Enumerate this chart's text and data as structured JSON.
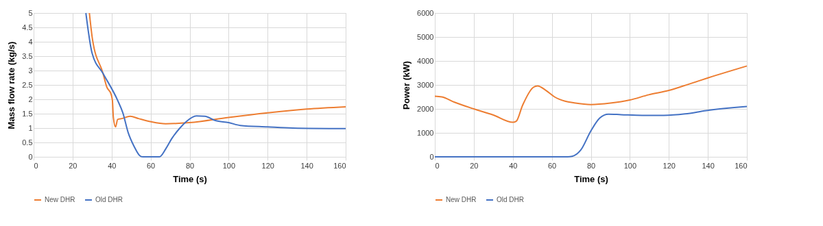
{
  "chart_data": [
    {
      "type": "line",
      "xlabel": "Time (s)",
      "ylabel": "Mass flow rate (kg/s)",
      "xlim": [
        0,
        160
      ],
      "xticks": [
        0,
        20,
        40,
        60,
        80,
        100,
        120,
        140,
        160
      ],
      "ylim": [
        0,
        5
      ],
      "yticks": [
        0,
        0.5,
        1,
        1.5,
        2,
        2.5,
        3,
        3.5,
        4,
        4.5,
        5
      ],
      "grid": true,
      "legend": "bottom",
      "marker": "none",
      "line_style": "solid",
      "series": [
        {
          "name": "New DHR",
          "color": "#ed7d31",
          "x": [
            28.6,
            30.2,
            35.6,
            37.5,
            39.7,
            40.4,
            40.9,
            42,
            43.1,
            45.2,
            49.5,
            53.8,
            60.2,
            67.7,
            80,
            100,
            120,
            140,
            160
          ],
          "values": [
            5,
            4.08,
            2.9,
            2.43,
            2.18,
            1.96,
            1.37,
            1.04,
            1.3,
            1.33,
            1.41,
            1.33,
            1.22,
            1.15,
            1.19,
            1.37,
            1.53,
            1.66,
            1.74
          ]
        },
        {
          "name": "Old DHR",
          "color": "#4472c4",
          "x": [
            26.8,
            30,
            35.6,
            43.1,
            45.8,
            48.4,
            51.7,
            54.3,
            56,
            64.5,
            67.7,
            70.9,
            75,
            78.2,
            83.5,
            87.8,
            93.2,
            100,
            106,
            120,
            132.9,
            160
          ],
          "values": [
            5,
            3.6,
            2.9,
            1.96,
            1.52,
            0.86,
            0.34,
            0.05,
            0,
            0,
            0.27,
            0.64,
            1.0,
            1.22,
            1.42,
            1.41,
            1.26,
            1.19,
            1.09,
            1.04,
            1.0,
            0.98
          ]
        }
      ]
    },
    {
      "type": "line",
      "xlabel": "Time (s)",
      "ylabel": "Power (kW)",
      "xlim": [
        0,
        160
      ],
      "xticks": [
        0,
        20,
        40,
        60,
        80,
        100,
        120,
        140,
        160
      ],
      "ylim": [
        0,
        6000
      ],
      "yticks": [
        0,
        1000,
        2000,
        3000,
        4000,
        5000,
        6000
      ],
      "grid": true,
      "legend": "bottom",
      "marker": "none",
      "line_style": "solid",
      "series": [
        {
          "name": "New DHR",
          "color": "#ed7d31",
          "x": [
            0,
            3.6,
            10.1,
            20,
            29.8,
            40,
            41.7,
            45,
            50.5,
            52.7,
            57,
            61.4,
            66.8,
            71.5,
            80,
            90,
            100,
            109.7,
            120,
            130.5,
            140.3,
            160
          ],
          "values": [
            2530,
            2500,
            2280,
            2000,
            1750,
            1440,
            1480,
            2150,
            2900,
            2960,
            2770,
            2500,
            2320,
            2250,
            2180,
            2240,
            2370,
            2590,
            2770,
            3040,
            3300,
            3790
          ]
        },
        {
          "name": "Old DHR",
          "color": "#4472c4",
          "x": [
            0,
            60,
            68,
            70.4,
            74.8,
            80,
            84.6,
            89,
            95.5,
            106.4,
            117.4,
            128.3,
            139.2,
            160
          ],
          "values": [
            0,
            0,
            0,
            20,
            280,
            1080,
            1620,
            1780,
            1760,
            1730,
            1730,
            1790,
            1930,
            2100
          ]
        }
      ]
    }
  ]
}
